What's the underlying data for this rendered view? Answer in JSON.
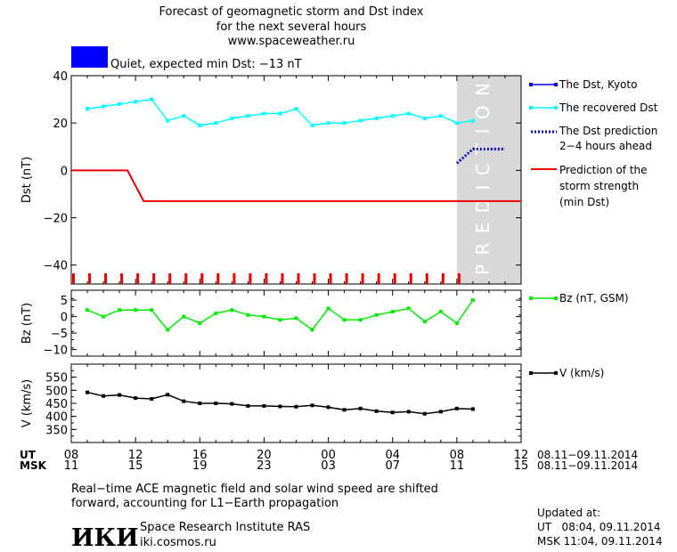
{
  "title": {
    "line1": "Forecast of geomagnetic storm and Dst index",
    "line2": "for the next several hours",
    "line3": "www.spaceweather.ru"
  },
  "status": {
    "text": "Quiet, expected min Dst: −13 nT",
    "color": "#0000ff"
  },
  "prediction_label": "PREDICTION",
  "legend": {
    "dst_kyoto": "The Dst, Kyoto",
    "recovered_dst": "The recovered Dst",
    "dst_prediction_1": "The Dst prediction",
    "dst_prediction_2": "2−4 hours ahead",
    "storm_1": "Prediction of the",
    "storm_2": "storm strength",
    "storm_3": "(min Dst)",
    "bz": "Bz (nT, GSM)",
    "v": "V (km/s)"
  },
  "time_axis": {
    "ut_label": "UT",
    "msk_label": "MSK",
    "ut_ticks": [
      "08",
      "12",
      "16",
      "20",
      "00",
      "04",
      "08",
      "12"
    ],
    "msk_ticks": [
      "11",
      "15",
      "19",
      "23",
      "03",
      "07",
      "11",
      "15"
    ],
    "range_ut": "08.11−09.11.2014",
    "range_msk": "08.11−09.11.2014"
  },
  "footer": {
    "note_1": "Real−time ACE magnetic field and solar wind speed are shifted",
    "note_2": "forward, accounting for L1−Earth propagation",
    "logo": "ИКИ",
    "institute": "Space Research Institute RAS",
    "url": "iki.cosmos.ru",
    "updated_label": "Updated at:",
    "updated_ut": "UT   08:04, 09.11.2014",
    "updated_msk": "MSK 11:04, 09.11.2014"
  },
  "colors": {
    "recovered": "#00ffff",
    "prediction": "#0000cc",
    "storm": "#ee0000",
    "bz": "#00ee00",
    "v": "#000000",
    "shade": "#d8d8d8"
  },
  "chart_data": [
    {
      "type": "line",
      "ylabel": "Dst (nT)",
      "xlim": [
        0,
        28
      ],
      "ylim": [
        -48,
        40
      ],
      "yticks": [
        40,
        20,
        0,
        -20,
        -40
      ],
      "prediction_start": 24,
      "series": [
        {
          "name": "The recovered Dst",
          "x": [
            1,
            2,
            3,
            4,
            5,
            6,
            7,
            8,
            9,
            10,
            11,
            12,
            13,
            14,
            15,
            16,
            17,
            18,
            19,
            20,
            21,
            22,
            23,
            24,
            25
          ],
          "values": [
            26,
            27,
            28,
            29,
            30,
            21,
            23,
            19,
            20,
            22,
            23,
            24,
            24,
            26,
            19,
            20,
            20,
            21,
            22,
            23,
            24,
            22,
            23,
            20,
            21
          ]
        },
        {
          "name": "The Dst prediction",
          "x": [
            24,
            25,
            26,
            27
          ],
          "values": [
            3,
            9,
            9,
            9
          ]
        },
        {
          "name": "Prediction of the storm strength (min Dst)",
          "x": [
            0,
            3.5,
            4.5,
            28
          ],
          "values": [
            0,
            0,
            -13,
            -13
          ]
        }
      ]
    },
    {
      "type": "line",
      "ylabel": "Bz (nT)",
      "xlim": [
        0,
        28
      ],
      "ylim": [
        -12,
        8
      ],
      "yticks": [
        5,
        0,
        -5,
        -10
      ],
      "series": [
        {
          "name": "Bz (nT, GSM)",
          "x": [
            1,
            2,
            3,
            4,
            5,
            6,
            7,
            8,
            9,
            10,
            11,
            12,
            13,
            14,
            15,
            16,
            17,
            18,
            19,
            20,
            21,
            22,
            23,
            24,
            25
          ],
          "values": [
            2,
            0,
            2,
            2,
            2,
            -4,
            0,
            -2,
            1,
            2,
            0.5,
            0,
            -1,
            -0.5,
            -4,
            2.5,
            -1,
            -1,
            0.5,
            1.5,
            2.5,
            -1.5,
            1.5,
            -2,
            5
          ]
        }
      ]
    },
    {
      "type": "line",
      "ylabel": "V (km/s)",
      "xlim": [
        0,
        28
      ],
      "ylim": [
        300,
        600
      ],
      "yticks": [
        550,
        500,
        450,
        400,
        350
      ],
      "series": [
        {
          "name": "V (km/s)",
          "x": [
            1,
            2,
            3,
            4,
            5,
            6,
            7,
            8,
            9,
            10,
            11,
            12,
            13,
            14,
            15,
            16,
            17,
            18,
            19,
            20,
            21,
            22,
            23,
            24,
            25
          ],
          "values": [
            492,
            478,
            482,
            470,
            467,
            483,
            458,
            450,
            450,
            448,
            440,
            440,
            438,
            437,
            442,
            435,
            425,
            430,
            420,
            415,
            418,
            410,
            418,
            430,
            428
          ]
        }
      ]
    }
  ]
}
